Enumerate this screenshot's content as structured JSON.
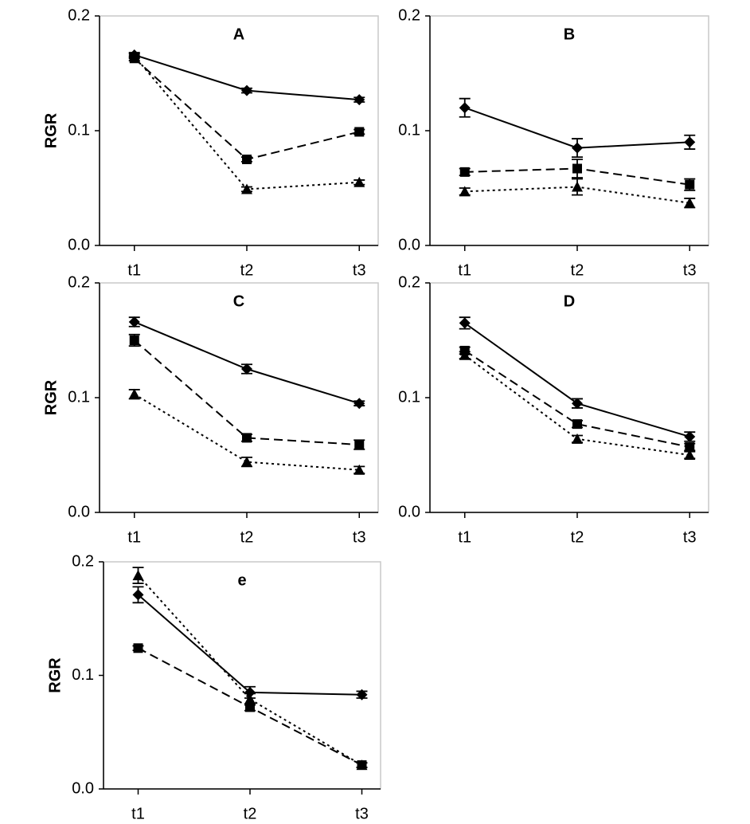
{
  "chart_data": [
    {
      "type": "line",
      "title": "A",
      "ylabel": "RGR",
      "categories": [
        "t1",
        "t2",
        "t3"
      ],
      "ylim": [
        0,
        0.2
      ],
      "yticks": [
        {
          "value": 0,
          "label": "0.0"
        },
        0.1,
        0.2
      ],
      "series": [
        {
          "color": "#000000",
          "marker": "diamond",
          "line_style": "solid",
          "values": [
            0.166,
            0.135,
            0.127
          ],
          "errors": [
            0.002,
            0.002,
            0.002
          ]
        },
        {
          "color": "#000000",
          "marker": "square",
          "line_style": "dashed",
          "values": [
            0.163,
            0.075,
            0.099
          ],
          "errors": [
            0.002,
            0.002,
            0.002
          ]
        },
        {
          "color": "#000000",
          "marker": "triangle",
          "line_style": "dotted",
          "values": [
            0.165,
            0.049,
            0.055
          ],
          "errors": [
            0.002,
            0.002,
            0.002
          ]
        }
      ]
    },
    {
      "type": "line",
      "title": "B",
      "categories": [
        "t1",
        "t2",
        "t3"
      ],
      "ylim": [
        0,
        0.2
      ],
      "yticks": [
        {
          "value": 0,
          "label": "0.0"
        },
        0.1,
        0.2
      ],
      "series": [
        {
          "color": "#000000",
          "marker": "diamond",
          "line_style": "solid",
          "values": [
            0.12,
            0.085,
            0.09
          ],
          "errors": [
            0.008,
            0.008,
            0.006
          ]
        },
        {
          "color": "#000000",
          "marker": "square",
          "line_style": "dashed",
          "values": [
            0.064,
            0.067,
            0.053
          ],
          "errors": [
            0.003,
            0.008,
            0.005
          ]
        },
        {
          "color": "#000000",
          "marker": "triangle",
          "line_style": "dotted",
          "values": [
            0.047,
            0.051,
            0.037
          ],
          "errors": [
            0.003,
            0.007,
            0.004
          ]
        }
      ]
    },
    {
      "type": "line",
      "title": "C",
      "ylabel": "RGR",
      "categories": [
        "t1",
        "t2",
        "t3"
      ],
      "ylim": [
        0,
        0.2
      ],
      "yticks": [
        {
          "value": 0,
          "label": "0.0"
        },
        0.1,
        0.2
      ],
      "series": [
        {
          "color": "#000000",
          "marker": "diamond",
          "line_style": "solid",
          "values": [
            0.166,
            0.125,
            0.095
          ],
          "errors": [
            0.004,
            0.004,
            0.002
          ]
        },
        {
          "color": "#000000",
          "marker": "square",
          "line_style": "dashed",
          "values": [
            0.15,
            0.065,
            0.059
          ],
          "errors": [
            0.005,
            0.003,
            0.004
          ]
        },
        {
          "color": "#000000",
          "marker": "triangle",
          "line_style": "dotted",
          "values": [
            0.103,
            0.044,
            0.037
          ],
          "errors": [
            0.004,
            0.004,
            0.003
          ]
        }
      ]
    },
    {
      "type": "line",
      "title": "D",
      "categories": [
        "t1",
        "t2",
        "t3"
      ],
      "ylim": [
        0,
        0.2
      ],
      "yticks": [
        {
          "value": 0,
          "label": "0.0"
        },
        0.1,
        0.2
      ],
      "series": [
        {
          "color": "#000000",
          "marker": "diamond",
          "line_style": "solid",
          "values": [
            0.165,
            0.095,
            0.066
          ],
          "errors": [
            0.005,
            0.004,
            0.004
          ]
        },
        {
          "color": "#000000",
          "marker": "square",
          "line_style": "dashed",
          "values": [
            0.141,
            0.077,
            0.057
          ],
          "errors": [
            0.003,
            0.003,
            0.003
          ]
        },
        {
          "color": "#000000",
          "marker": "triangle",
          "line_style": "dotted",
          "values": [
            0.137,
            0.064,
            0.05
          ],
          "errors": [
            0.003,
            0.003,
            0.003
          ]
        }
      ]
    },
    {
      "type": "line",
      "title": "e",
      "ylabel": "RGR",
      "categories": [
        "t1",
        "t2",
        "t3"
      ],
      "ylim": [
        0,
        0.2
      ],
      "yticks": [
        {
          "value": 0,
          "label": "0.0"
        },
        0.1,
        0.2
      ],
      "series": [
        {
          "color": "#000000",
          "marker": "diamond",
          "line_style": "solid",
          "values": [
            0.171,
            0.085,
            0.083
          ],
          "errors": [
            0.007,
            0.005,
            0.003
          ]
        },
        {
          "color": "#000000",
          "marker": "square",
          "line_style": "dashed",
          "values": [
            0.124,
            0.072,
            0.021
          ],
          "errors": [
            0.002,
            0.003,
            0.002
          ]
        },
        {
          "color": "#000000",
          "marker": "triangle",
          "line_style": "dotted",
          "values": [
            0.188,
            0.079,
            0.021
          ],
          "errors": [
            0.007,
            0.005,
            0.002
          ]
        }
      ]
    }
  ]
}
